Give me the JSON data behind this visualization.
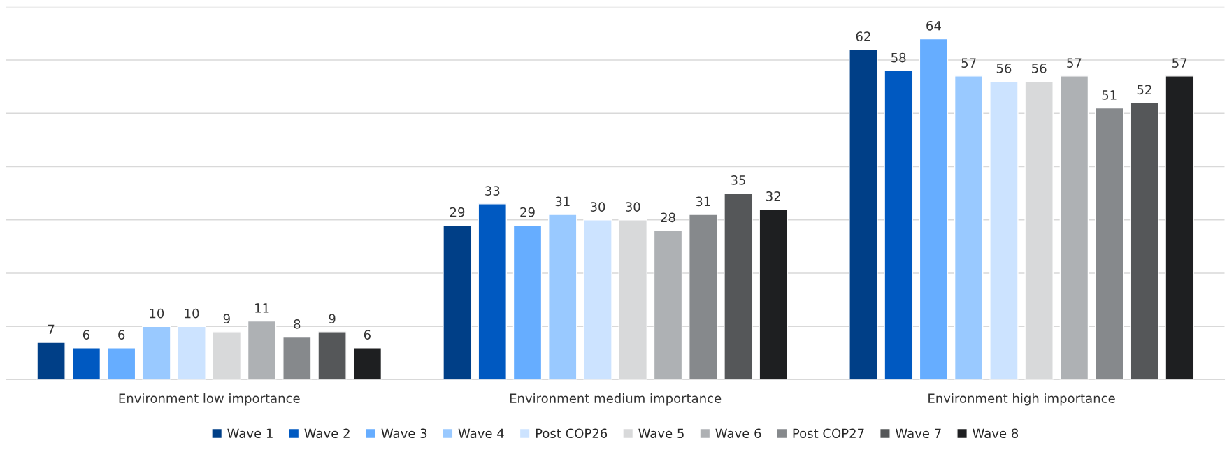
{
  "chart_data": {
    "type": "bar",
    "categories": [
      "Environment low importance",
      "Environment medium importance",
      "Environment high importance"
    ],
    "series": [
      {
        "name": "Wave 1",
        "color": "#003f87",
        "values": [
          7,
          29,
          62
        ]
      },
      {
        "name": "Wave 2",
        "color": "#0059c1",
        "values": [
          6,
          33,
          58
        ]
      },
      {
        "name": "Wave 3",
        "color": "#66adff",
        "values": [
          6,
          29,
          64
        ]
      },
      {
        "name": "Wave 4",
        "color": "#99c9ff",
        "values": [
          10,
          31,
          57
        ]
      },
      {
        "name": "Post COP26",
        "color": "#cce3ff",
        "values": [
          10,
          30,
          56
        ]
      },
      {
        "name": "Wave 5",
        "color": "#d8d9da",
        "values": [
          9,
          30,
          56
        ]
      },
      {
        "name": "Wave 6",
        "color": "#aeb1b4",
        "values": [
          11,
          28,
          57
        ]
      },
      {
        "name": "Post COP27",
        "color": "#86898c",
        "values": [
          8,
          31,
          51
        ]
      },
      {
        "name": "Wave 7",
        "color": "#555759",
        "values": [
          9,
          35,
          52
        ]
      },
      {
        "name": "Wave 8",
        "color": "#1e1f21",
        "values": [
          6,
          32,
          57
        ]
      }
    ],
    "ylim": [
      0,
      70
    ],
    "yticks": [
      {
        "value": 0,
        "label": null
      },
      {
        "value": 10,
        "label": null
      },
      {
        "value": 20,
        "label": null
      },
      {
        "value": 30,
        "label": null
      },
      {
        "value": 40,
        "label": null
      },
      {
        "value": 50,
        "label": null
      },
      {
        "value": 60,
        "label": null
      },
      {
        "value": 70,
        "label": null
      }
    ],
    "tick_labels": "x",
    "grid": "y",
    "legend": "bottom",
    "data_labels": true
  }
}
